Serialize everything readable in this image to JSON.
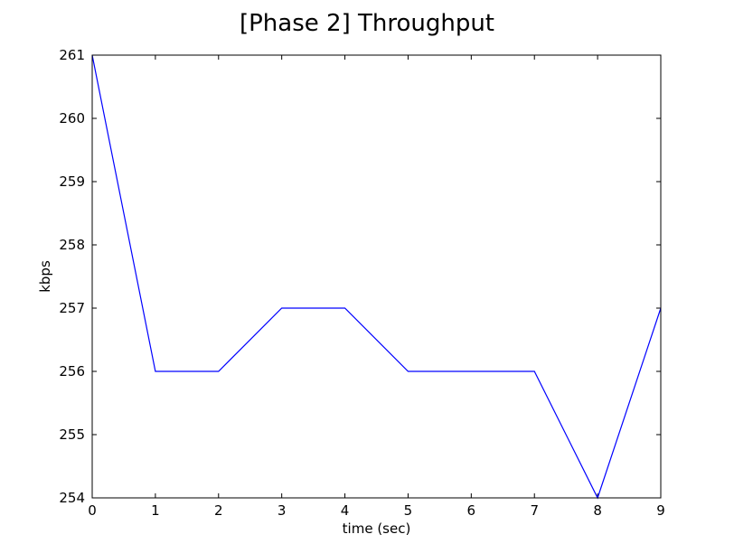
{
  "chart_data": {
    "type": "line",
    "title": "[Phase 2] Throughput",
    "xlabel": "time (sec)",
    "ylabel": "kbps",
    "x": [
      0,
      1,
      2,
      3,
      4,
      5,
      6,
      7,
      8,
      9
    ],
    "series": [
      {
        "values": [
          261,
          256,
          256,
          257,
          257,
          256,
          256,
          256,
          254,
          257
        ],
        "color": "#0000ff"
      }
    ],
    "xlim": [
      0,
      9
    ],
    "ylim": [
      254,
      261
    ],
    "xticks": [
      "0",
      "1",
      "2",
      "3",
      "4",
      "5",
      "6",
      "7",
      "8",
      "9"
    ],
    "yticks": [
      "254",
      "255",
      "256",
      "257",
      "258",
      "259",
      "260",
      "261"
    ],
    "grid": false,
    "legend": false
  }
}
